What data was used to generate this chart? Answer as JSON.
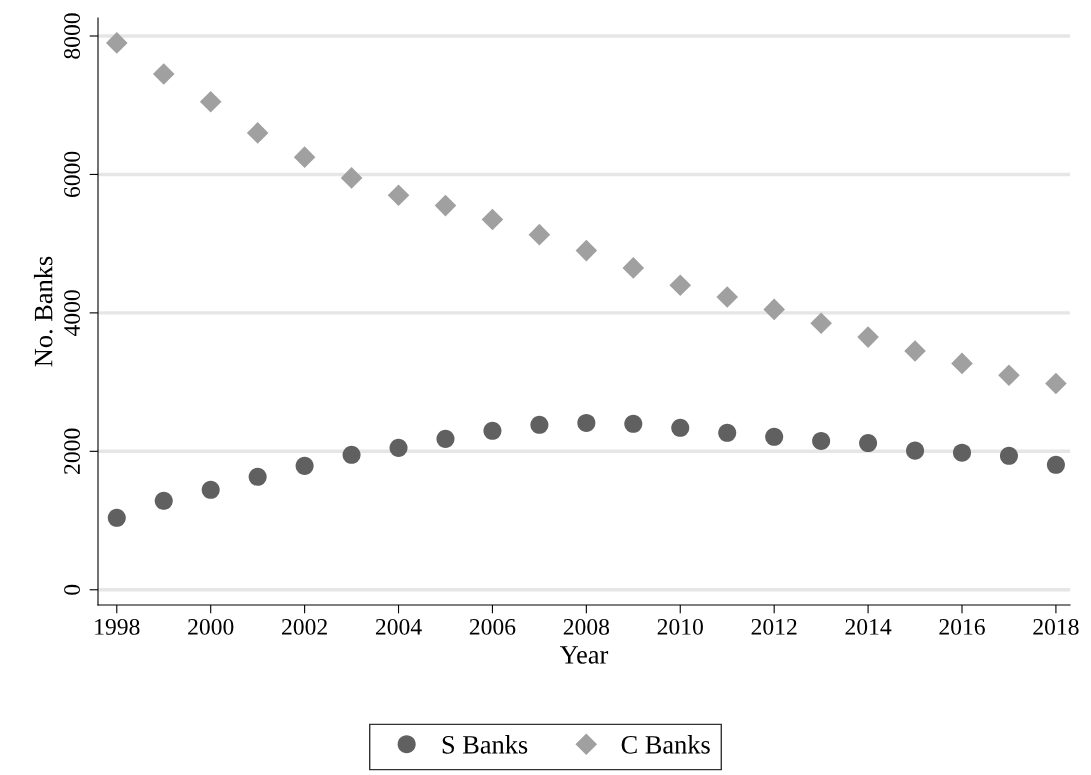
{
  "chart_data": {
    "type": "scatter",
    "xlabel": "Year",
    "ylabel": "No. Banks",
    "x": [
      1998,
      1999,
      2000,
      2001,
      2002,
      2003,
      2004,
      2005,
      2006,
      2007,
      2008,
      2009,
      2010,
      2011,
      2012,
      2013,
      2014,
      2015,
      2016,
      2017,
      2018
    ],
    "series": [
      {
        "name": "S Banks",
        "color": "#606060",
        "marker": "circle",
        "values": [
          1040,
          1285,
          1444,
          1632,
          1790,
          1950,
          2050,
          2180,
          2296,
          2383,
          2410,
          2397,
          2340,
          2267,
          2210,
          2150,
          2120,
          2010,
          1980,
          1935,
          1805
        ]
      },
      {
        "name": "C Banks",
        "color": "#a0a0a0",
        "marker": "diamond",
        "values": [
          7900,
          7450,
          7050,
          6600,
          6250,
          5950,
          5700,
          5550,
          5350,
          5130,
          4900,
          4650,
          4400,
          4230,
          4050,
          3850,
          3650,
          3450,
          3270,
          3100,
          2980
        ]
      }
    ],
    "xlim": [
      1997.6,
      2018.3
    ],
    "xticks": [
      1998,
      2000,
      2002,
      2004,
      2006,
      2008,
      2010,
      2012,
      2014,
      2016,
      2018
    ],
    "ylim": [
      -220,
      8260
    ],
    "yticks": [
      0,
      2000,
      4000,
      6000,
      8000
    ],
    "grid": "y",
    "legend": "bottom"
  }
}
